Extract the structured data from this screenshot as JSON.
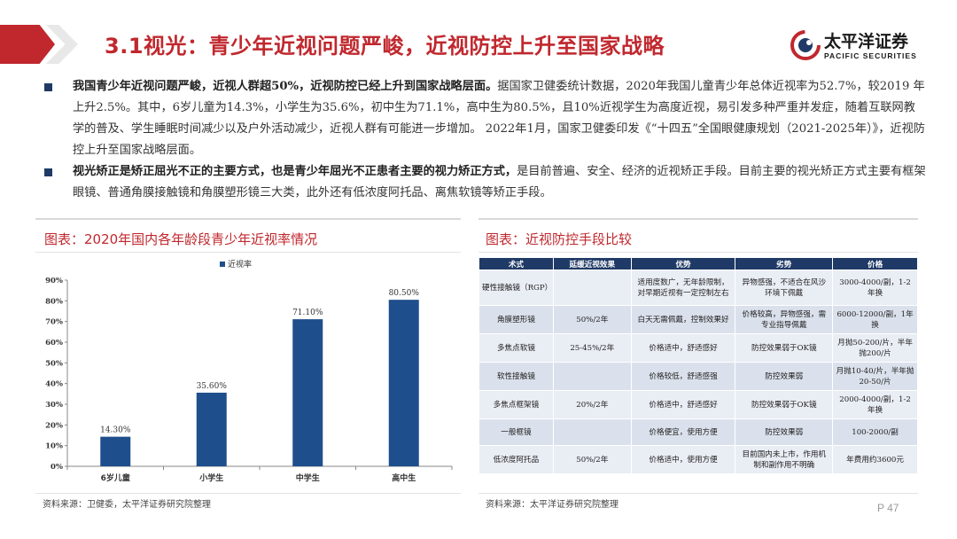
{
  "header": {
    "title": "3.1视光：青少年近视问题严峻，近视防控上升至国家战略",
    "logo_cn": "太平洋证券",
    "logo_en": "PACIFIC SECURITIES",
    "brand_color": "#c0282e",
    "icon": "pacific-securities-logo-icon"
  },
  "bullets": [
    {
      "bold": "我国青少年近视问题严峻，近视人群超50%，近视防控已经上升到国家战略层面。",
      "text": "据国家卫健委统计数据，2020年我国儿童青少年总体近视率为52.7%，较2019 年上升2.5%。其中，6岁儿童为14.3%，小学生为35.6%，初中生为71.1%，高中生为80.5%，且10%近视学生为高度近视，易引发多种严重并发症，随着互联网教学的普及、学生睡眠时间减少以及户外活动减少，近视人群有可能进一步增加。 2022年1月，国家卫健委印发《“十四五”全国眼健康规划（2021-2025年）》，近视防控上升至国家战略层面。"
    },
    {
      "bold": "视光矫正是矫正屈光不正的主要方式，也是青少年屈光不正患者主要的视力矫正方式，",
      "text": "是目前普遍、安全、经济的近视矫正手段。目前主要的视光矫正方式主要有框架眼镜、普通角膜接触镜和角膜塑形镜三大类，此外还有低浓度阿托品、离焦软镜等矫正手段。"
    }
  ],
  "left_panel": {
    "title": "图表：2020年国内各年龄段青少年近视率情况",
    "source": "资料来源：卫健委，太平洋证券研究院整理"
  },
  "right_panel": {
    "title": "图表：近视防控手段比较",
    "source": "资料来源：太平洋证券研究院整理"
  },
  "chart_data": {
    "type": "bar",
    "categories": [
      "6岁儿童",
      "小学生",
      "中学生",
      "高中生"
    ],
    "series": [
      {
        "name": "近视率",
        "values": [
          14.3,
          35.6,
          71.1,
          80.5
        ],
        "labels": [
          "14.30%",
          "35.60%",
          "71.10%",
          "80.50%"
        ],
        "color": "#1f4e8c"
      }
    ],
    "ylim": [
      0,
      90
    ],
    "yticks": [
      "0%",
      "10%",
      "20%",
      "30%",
      "40%",
      "50%",
      "60%",
      "70%",
      "80%",
      "90%"
    ],
    "legend": "top-center",
    "grid": false
  },
  "table": {
    "headers": [
      "术式",
      "延缓近视效果",
      "优势",
      "劣势",
      "价格"
    ],
    "rows": [
      [
        "硬性接触镜（RGP）",
        "",
        "适用度数广，无年龄限制，对早期近视有一定控制左右",
        "异物感强，不适合在风沙环境下佩戴",
        "3000-4000/副，1-2年换"
      ],
      [
        "角膜塑形镜",
        "50%/2年",
        "白天无需佩戴，控制效果好",
        "价格较高，异物感强，需专业指导佩戴",
        "6000-12000/副，1年换"
      ],
      [
        "多焦点软镜",
        "25-45%/2年",
        "价格适中，舒适感好",
        "防控效果弱于OK镜",
        "月抛50-200/片，半年抛200/片"
      ],
      [
        "软性接触镜",
        "",
        "价格较低，舒适感强",
        "防控效果弱",
        "月抛10-40/片，半年抛20-50/片"
      ],
      [
        "多焦点框架镜",
        "20%/2年",
        "价格适中，舒适感好",
        "防控效果弱于OK镜",
        "2000-4000/副，1-2年换"
      ],
      [
        "一般框镜",
        "",
        "价格便宜，使用方便",
        "防控效果弱",
        "100-2000/副"
      ],
      [
        "低浓度阿托品",
        "50%/2年",
        "价格适中，使用方便",
        "目前国内未上市，作用机制和副作用不明确",
        "年费用约3600元"
      ]
    ],
    "header_color": "#1f3a66"
  },
  "page": {
    "number": "P 47"
  }
}
